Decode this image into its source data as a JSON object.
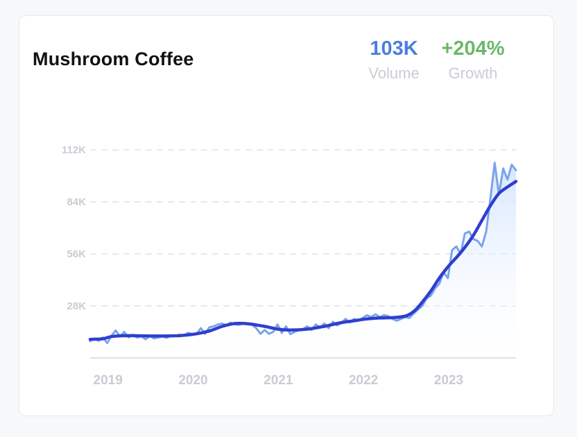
{
  "card": {
    "title": "Mushroom Coffee",
    "volume": {
      "value": "103K",
      "label": "Volume"
    },
    "growth": {
      "value": "+204%",
      "label": "Growth"
    }
  },
  "colors": {
    "raw_line": "#7aa3ec",
    "trend_line": "#2f3fcc",
    "area_fill": "#e3efff",
    "volume": "#4a7ee0",
    "growth": "#6bb86a",
    "axis_text": "#c9ccd3"
  },
  "chart_data": {
    "type": "line",
    "title": "Mushroom Coffee",
    "xlabel": "",
    "ylabel": "",
    "ylim": [
      0,
      112000
    ],
    "xlim": [
      2018.75,
      2023.75
    ],
    "y_ticks": [
      {
        "value": 28000,
        "label": "28K"
      },
      {
        "value": 56000,
        "label": "56K"
      },
      {
        "value": 84000,
        "label": "84K"
      },
      {
        "value": 112000,
        "label": "112K"
      }
    ],
    "x_ticks": [
      {
        "value": 2019.0,
        "label": "2019"
      },
      {
        "value": 2020.0,
        "label": "2020"
      },
      {
        "value": 2021.0,
        "label": "2021"
      },
      {
        "value": 2022.0,
        "label": "2022"
      },
      {
        "value": 2023.0,
        "label": "2023"
      }
    ],
    "grid": "horizontal dashed",
    "series": [
      {
        "role": "raw",
        "x": [
          2018.75,
          2018.8,
          2018.85,
          2018.9,
          2018.95,
          2019.0,
          2019.05,
          2019.1,
          2019.15,
          2019.2,
          2019.25,
          2019.3,
          2019.35,
          2019.4,
          2019.45,
          2019.5,
          2019.55,
          2019.6,
          2019.65,
          2019.7,
          2019.75,
          2019.8,
          2019.85,
          2019.9,
          2019.95,
          2020.0,
          2020.05,
          2020.1,
          2020.15,
          2020.2,
          2020.25,
          2020.3,
          2020.35,
          2020.4,
          2020.45,
          2020.5,
          2020.55,
          2020.6,
          2020.65,
          2020.7,
          2020.75,
          2020.8,
          2020.85,
          2020.9,
          2020.95,
          2021.0,
          2021.05,
          2021.1,
          2021.15,
          2021.2,
          2021.25,
          2021.3,
          2021.35,
          2021.4,
          2021.45,
          2021.5,
          2021.55,
          2021.6,
          2021.65,
          2021.7,
          2021.75,
          2021.8,
          2021.85,
          2021.9,
          2021.95,
          2022.0,
          2022.05,
          2022.1,
          2022.15,
          2022.2,
          2022.25,
          2022.3,
          2022.35,
          2022.4,
          2022.45,
          2022.5,
          2022.55,
          2022.6,
          2022.65,
          2022.7,
          2022.75,
          2022.8,
          2022.85,
          2022.9,
          2022.95,
          2023.0,
          2023.05,
          2023.1,
          2023.15,
          2023.2,
          2023.25,
          2023.3,
          2023.35,
          2023.4,
          2023.45,
          2023.5,
          2023.55,
          2023.6,
          2023.65,
          2023.7,
          2023.75
        ],
        "y": [
          9000,
          10500,
          9200,
          11000,
          8000,
          12000,
          14800,
          11500,
          14000,
          11000,
          12500,
          11000,
          11600,
          10000,
          11800,
          10500,
          11000,
          11500,
          10800,
          12000,
          11800,
          12500,
          12000,
          13500,
          12800,
          13000,
          16000,
          13000,
          16500,
          17000,
          18000,
          18500,
          17500,
          19000,
          18000,
          17800,
          18600,
          18200,
          18000,
          16000,
          13000,
          15000,
          13000,
          14000,
          18000,
          13500,
          17000,
          12800,
          14000,
          15000,
          15500,
          17000,
          15000,
          18000,
          16500,
          18500,
          16000,
          19500,
          17500,
          19000,
          21000,
          19000,
          21000,
          20000,
          21500,
          23000,
          22000,
          23500,
          22000,
          23000,
          22500,
          21000,
          20000,
          21000,
          22000,
          21500,
          24000,
          26000,
          28000,
          32000,
          33500,
          37500,
          40000,
          46000,
          43000,
          58000,
          60000,
          56000,
          67000,
          68000,
          64000,
          63000,
          60000,
          68000,
          86000,
          105000,
          88000,
          102000,
          96000,
          104000,
          101000
        ]
      },
      {
        "role": "trend",
        "x": [
          2018.75,
          2018.9,
          2019.0,
          2019.2,
          2019.5,
          2019.8,
          2020.0,
          2020.15,
          2020.3,
          2020.45,
          2020.6,
          2020.8,
          2020.95,
          2021.1,
          2021.3,
          2021.5,
          2021.7,
          2021.85,
          2022.0,
          2022.15,
          2022.3,
          2022.45,
          2022.55,
          2022.65,
          2022.75,
          2022.85,
          2022.95,
          2023.05,
          2023.15,
          2023.25,
          2023.35,
          2023.45,
          2023.55,
          2023.65,
          2023.75
        ],
        "y": [
          10000,
          10300,
          11500,
          12000,
          11800,
          12000,
          13000,
          14500,
          17000,
          18500,
          18400,
          17000,
          15500,
          15000,
          15500,
          17000,
          19000,
          20000,
          21000,
          21500,
          21700,
          22500,
          25000,
          30000,
          36000,
          43000,
          49000,
          54000,
          59500,
          66000,
          74000,
          82000,
          88500,
          92000,
          95000
        ]
      }
    ]
  }
}
